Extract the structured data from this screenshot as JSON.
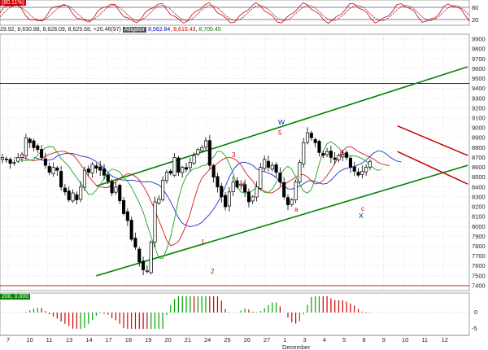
{
  "stoch_pane": {
    "title_value": "(80.11%)",
    "yticks": [
      "80",
      "20"
    ],
    "lines": [
      80,
      20
    ],
    "colors": {
      "k": "#d00000",
      "d": "#800000"
    }
  },
  "main_pane": {
    "header": {
      "ohlc": "29.92, 8,630.88, 8,628.09, 8,629.68, +20.46(97)",
      "indicator": "Alligator",
      "jaw": "8,562.84",
      "teeth": "8,619.43",
      "lips": "8,705.45"
    },
    "horizontal_lines": [
      {
        "value": 9450,
        "color": "#000080"
      },
      {
        "value": 7400,
        "color": "#d00000"
      }
    ],
    "wave_labels": [
      {
        "text": "W",
        "color": "blue"
      },
      {
        "text": "X",
        "color": "blue"
      },
      {
        "text": "1",
        "color": "red"
      },
      {
        "text": "2",
        "color": "red"
      },
      {
        "text": "3",
        "color": "red"
      },
      {
        "text": "4",
        "color": "red"
      },
      {
        "text": "5",
        "color": "red"
      },
      {
        "text": "a",
        "color": "red"
      },
      {
        "text": "b",
        "color": "red"
      },
      {
        "text": "c",
        "color": "red"
      }
    ]
  },
  "ao_pane": {
    "title_value": "200, 0.000",
    "yticks": [
      "0",
      "-5"
    ]
  },
  "x_axis": {
    "labels": [
      "7",
      "10",
      "11",
      "13",
      "14",
      "17",
      "18",
      "19",
      "20",
      "21",
      "24",
      "25",
      "26",
      "27",
      "1",
      "3",
      "4",
      "5",
      "8",
      "9",
      "10",
      "11",
      "12"
    ],
    "month_label": "December"
  },
  "chart_data": {
    "type": "candlestick",
    "y_axis_ticks": [
      7400,
      7500,
      7600,
      7700,
      7800,
      7900,
      8000,
      8100,
      8200,
      8300,
      8400,
      8500,
      8600,
      8700,
      8800,
      8900,
      9000,
      9100,
      9200,
      9300,
      9400,
      9500,
      9600,
      9700,
      9800,
      9900
    ],
    "ylim": [
      7350,
      9950
    ],
    "trend_channel": {
      "color": "#008000",
      "lower": [
        [
          24,
          7500
        ],
        [
          119,
          8620
        ]
      ],
      "upper": [
        [
          24,
          8410
        ],
        [
          119,
          9620
        ]
      ]
    },
    "falling_channel": {
      "color": "#d00000",
      "upper": [
        [
          101,
          9020
        ],
        [
          119,
          8720
        ]
      ],
      "lower": [
        [
          101,
          8760
        ],
        [
          119,
          8430
        ]
      ]
    },
    "closes": [
      8700,
      8680,
      8640,
      8650,
      8700,
      8730,
      8900,
      8850,
      8800,
      8780,
      8700,
      8620,
      8550,
      8600,
      8570,
      8400,
      8350,
      8270,
      8340,
      8270,
      8400,
      8570,
      8550,
      8630,
      8590,
      8570,
      8520,
      8460,
      8340,
      8400,
      8260,
      8130,
      8060,
      7870,
      7790,
      7640,
      7560,
      7550,
      7840,
      8250,
      8280,
      8470,
      8550,
      8540,
      8700,
      8550,
      8600,
      8580,
      8650,
      8720,
      8780,
      8800,
      8870,
      8620,
      8500,
      8400,
      8300,
      8200,
      8350,
      8450,
      8400,
      8430,
      8350,
      8250,
      8300,
      8400,
      8600,
      8680,
      8600,
      8620,
      8550,
      8450,
      8300,
      8220,
      8270,
      8450,
      8650,
      8850,
      8950,
      8900,
      8850,
      8750,
      8720,
      8760,
      8700,
      8680,
      8720,
      8730,
      8700,
      8600,
      8560,
      8520,
      8560,
      8600,
      8660
    ]
  }
}
